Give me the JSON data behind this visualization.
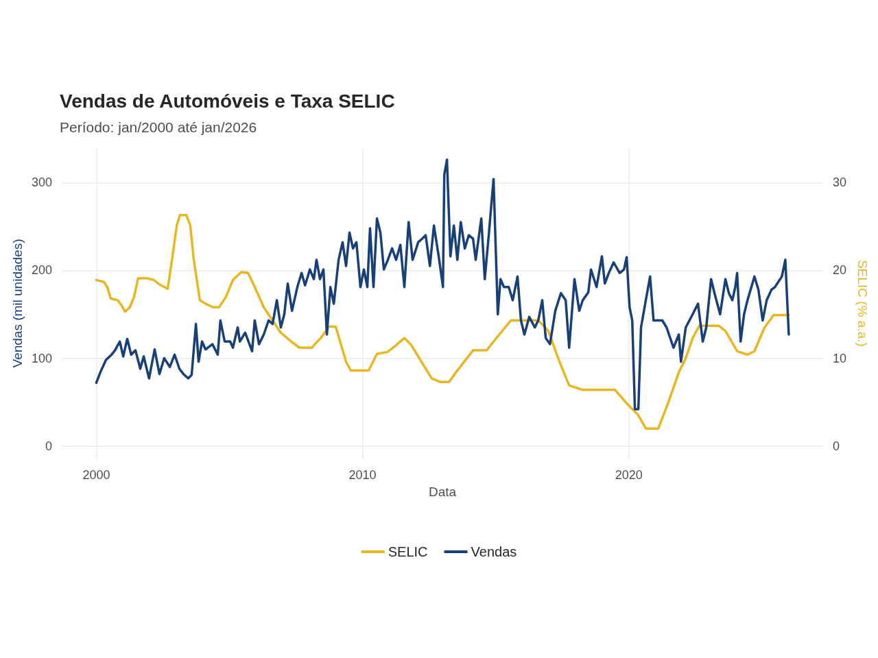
{
  "chart_data": {
    "type": "line",
    "title": "Vendas de Automóveis e Taxa SELIC",
    "subtitle": "Período: jan/2000 até jan/2026",
    "xlabel": "Data",
    "ylabel": "Vendas (mil unidades)",
    "y2label": "SELIC (% a.a.)",
    "xlim": [
      1998.7,
      2027.3
    ],
    "xticks": [
      2000,
      2010,
      2020
    ],
    "ylim": [
      -15,
      340
    ],
    "yticks": [
      0,
      100,
      200,
      300
    ],
    "y2lim": [
      -1.5,
      34
    ],
    "y2ticks": [
      0,
      10,
      20,
      30
    ],
    "grid": true,
    "legend": "bottom",
    "marker": "none",
    "line_style": "solid",
    "series": [
      {
        "name": "SELIC",
        "color": "#e8b620",
        "axis": "y2",
        "x": [
          2000.0,
          2000.28,
          2000.41,
          2000.54,
          2000.8,
          2000.95,
          2001.08,
          2001.26,
          2001.42,
          2001.57,
          2001.91,
          2002.16,
          2002.37,
          2002.68,
          2002.86,
          2003.02,
          2003.14,
          2003.38,
          2003.53,
          2003.66,
          2003.89,
          2004.1,
          2004.38,
          2004.61,
          2004.87,
          2005.13,
          2005.44,
          2005.7,
          2005.95,
          2006.29,
          2006.62,
          2006.93,
          2007.32,
          2007.63,
          2008.09,
          2008.43,
          2008.74,
          2008.99,
          2009.38,
          2009.56,
          2010.23,
          2010.54,
          2010.93,
          2011.19,
          2011.57,
          2011.83,
          2012.29,
          2012.6,
          2012.91,
          2013.25,
          2013.51,
          2014.15,
          2014.66,
          2014.92,
          2015.57,
          2016.6,
          2016.98,
          2017.37,
          2017.76,
          2018.27,
          2019.48,
          2020.0,
          2020.34,
          2020.64,
          2021.11,
          2021.49,
          2021.88,
          2022.14,
          2022.4,
          2022.65,
          2023.38,
          2023.63,
          2024.07,
          2024.46,
          2024.72,
          2025.1,
          2025.44,
          2026.01
        ],
        "values": [
          18.9,
          18.7,
          18.1,
          16.8,
          16.6,
          16.0,
          15.3,
          15.8,
          17.0,
          19.1,
          19.1,
          18.9,
          18.4,
          17.9,
          21.6,
          25.1,
          26.3,
          26.3,
          25.1,
          21.2,
          16.6,
          16.2,
          15.8,
          15.8,
          17.0,
          18.9,
          19.8,
          19.7,
          18.1,
          15.8,
          14.3,
          12.9,
          11.9,
          11.2,
          11.2,
          12.3,
          13.6,
          13.6,
          9.6,
          8.6,
          8.6,
          10.5,
          10.7,
          11.3,
          12.3,
          11.5,
          9.2,
          7.7,
          7.3,
          7.3,
          8.4,
          10.9,
          10.9,
          11.9,
          14.3,
          14.3,
          13.1,
          9.8,
          6.9,
          6.4,
          6.4,
          4.6,
          3.6,
          2.0,
          2.0,
          5.0,
          8.4,
          10.0,
          12.3,
          13.7,
          13.7,
          13.1,
          10.8,
          10.4,
          10.8,
          13.5,
          14.9,
          14.9
        ]
      },
      {
        "name": "Vendas",
        "color": "#173f78",
        "x": [
          2000.0,
          2000.15,
          2000.36,
          2000.57,
          2000.7,
          2000.88,
          2001.01,
          2001.16,
          2001.31,
          2001.47,
          2001.65,
          2001.78,
          2001.98,
          2002.19,
          2002.37,
          2002.55,
          2002.76,
          2002.94,
          2003.12,
          2003.27,
          2003.45,
          2003.58,
          2003.74,
          2003.84,
          2003.97,
          2004.1,
          2004.36,
          2004.56,
          2004.66,
          2004.82,
          2005.03,
          2005.13,
          2005.31,
          2005.39,
          2005.59,
          2005.85,
          2005.95,
          2006.11,
          2006.29,
          2006.47,
          2006.62,
          2006.78,
          2006.93,
          2007.06,
          2007.19,
          2007.35,
          2007.55,
          2007.71,
          2007.84,
          2008.02,
          2008.17,
          2008.27,
          2008.4,
          2008.53,
          2008.66,
          2008.79,
          2008.92,
          2009.1,
          2009.25,
          2009.38,
          2009.51,
          2009.64,
          2009.77,
          2009.92,
          2010.05,
          2010.18,
          2010.28,
          2010.41,
          2010.54,
          2010.67,
          2010.8,
          2010.95,
          2011.11,
          2011.26,
          2011.42,
          2011.57,
          2011.73,
          2011.88,
          2012.09,
          2012.24,
          2012.37,
          2012.53,
          2012.68,
          2012.86,
          2013.02,
          2013.07,
          2013.17,
          2013.3,
          2013.43,
          2013.56,
          2013.69,
          2013.84,
          2013.99,
          2014.15,
          2014.25,
          2014.46,
          2014.59,
          2014.74,
          2014.92,
          2015.08,
          2015.18,
          2015.31,
          2015.49,
          2015.64,
          2015.82,
          2015.95,
          2016.08,
          2016.26,
          2016.47,
          2016.6,
          2016.75,
          2016.88,
          2017.04,
          2017.24,
          2017.45,
          2017.63,
          2017.76,
          2017.96,
          2018.14,
          2018.27,
          2018.48,
          2018.58,
          2018.79,
          2018.99,
          2019.1,
          2019.25,
          2019.43,
          2019.66,
          2019.82,
          2019.92,
          2020.03,
          2020.13,
          2020.23,
          2020.36,
          2020.46,
          2020.64,
          2020.8,
          2020.93,
          2021.11,
          2021.26,
          2021.42,
          2021.68,
          2021.88,
          2021.96,
          2022.14,
          2022.4,
          2022.6,
          2022.78,
          2022.91,
          2023.09,
          2023.22,
          2023.43,
          2023.63,
          2023.76,
          2023.89,
          2024.0,
          2024.07,
          2024.2,
          2024.33,
          2024.46,
          2024.72,
          2024.87,
          2025.03,
          2025.18,
          2025.36,
          2025.49,
          2025.75,
          2025.88,
          2026.01
        ],
        "values": [
          72,
          84,
          98,
          104,
          109,
          119,
          102,
          122,
          104,
          109,
          88,
          102,
          77,
          110,
          82,
          100,
          90,
          104,
          88,
          82,
          77,
          81,
          139,
          96,
          119,
          110,
          116,
          104,
          143,
          119,
          119,
          112,
          135,
          119,
          129,
          108,
          143,
          116,
          127,
          143,
          139,
          166,
          135,
          150,
          185,
          154,
          181,
          197,
          183,
          201,
          190,
          212,
          190,
          201,
          127,
          181,
          162,
          212,
          232,
          205,
          243,
          225,
          232,
          181,
          201,
          181,
          248,
          181,
          259,
          243,
          201,
          212,
          225,
          212,
          229,
          181,
          255,
          212,
          232,
          236,
          240,
          205,
          251,
          216,
          181,
          309,
          326,
          216,
          251,
          212,
          255,
          225,
          240,
          236,
          212,
          259,
          190,
          240,
          304,
          150,
          190,
          181,
          181,
          166,
          193,
          143,
          127,
          147,
          135,
          143,
          166,
          123,
          116,
          154,
          174,
          166,
          112,
          190,
          154,
          166,
          175,
          201,
          181,
          216,
          185,
          197,
          209,
          197,
          201,
          215,
          158,
          143,
          42,
          42,
          135,
          166,
          193,
          143,
          143,
          143,
          135,
          112,
          127,
          96,
          135,
          150,
          162,
          119,
          135,
          190,
          174,
          150,
          190,
          174,
          166,
          181,
          197,
          119,
          150,
          166,
          193,
          178,
          143,
          166,
          178,
          181,
          193,
          212,
          127
        ]
      }
    ]
  }
}
